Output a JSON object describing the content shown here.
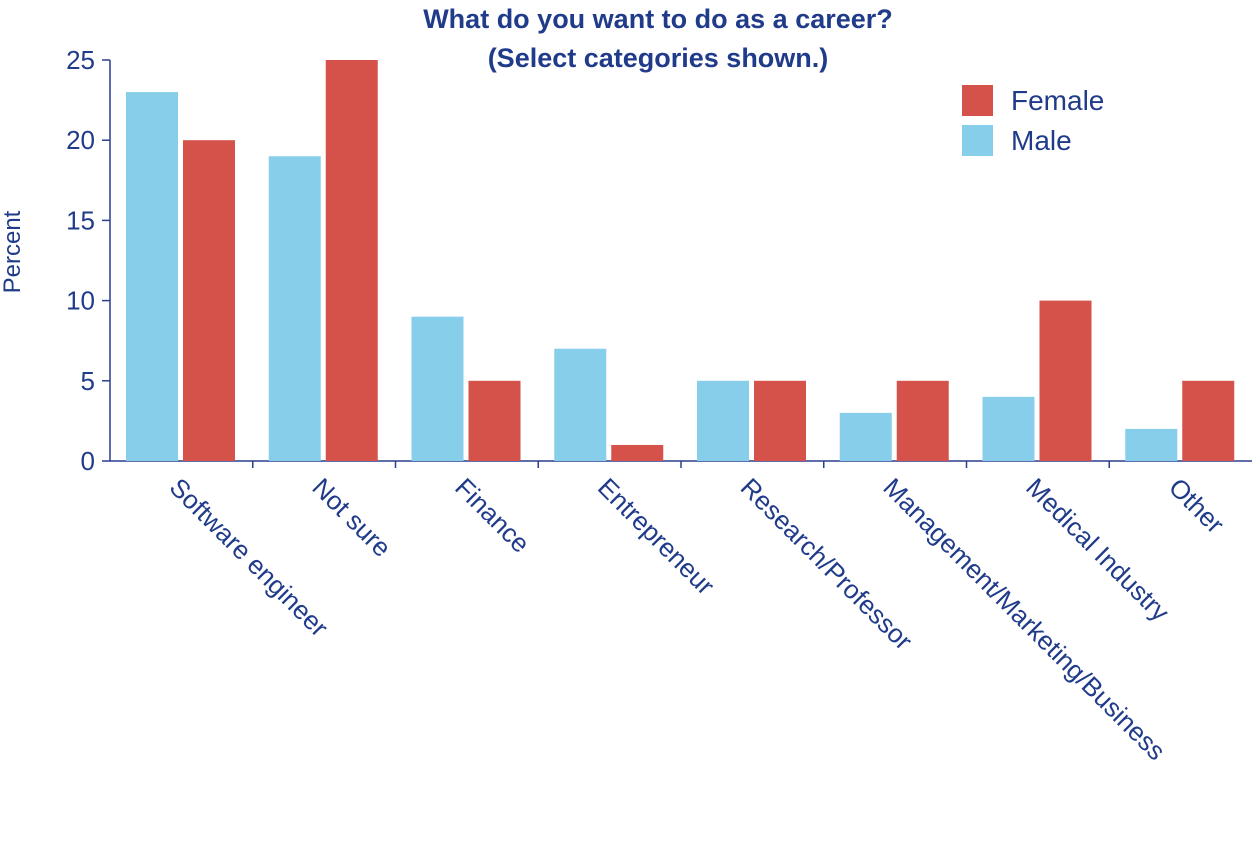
{
  "chart_data": {
    "type": "bar",
    "title": "What do you want to do as a career?",
    "subtitle": "(Select categories shown.)",
    "xlabel": "",
    "ylabel": "Percent",
    "ylim": [
      0,
      25
    ],
    "yticks": [
      0,
      5,
      10,
      15,
      20,
      25
    ],
    "grid": false,
    "legend_position": "top-right",
    "categories": [
      "Software engineer",
      "Not sure",
      "Finance",
      "Entrepreneur",
      "Research/Professor",
      "Management/Marketing/Business",
      "Medical Industry",
      "Other"
    ],
    "series": [
      {
        "name": "Male",
        "color": "#87ceeb",
        "values": [
          23,
          19,
          9,
          7,
          5,
          3,
          4,
          2
        ]
      },
      {
        "name": "Female",
        "color": "#d5524a",
        "values": [
          20,
          25,
          5,
          1,
          5,
          5,
          10,
          5
        ]
      }
    ],
    "legend_order": [
      "Female",
      "Male"
    ]
  }
}
